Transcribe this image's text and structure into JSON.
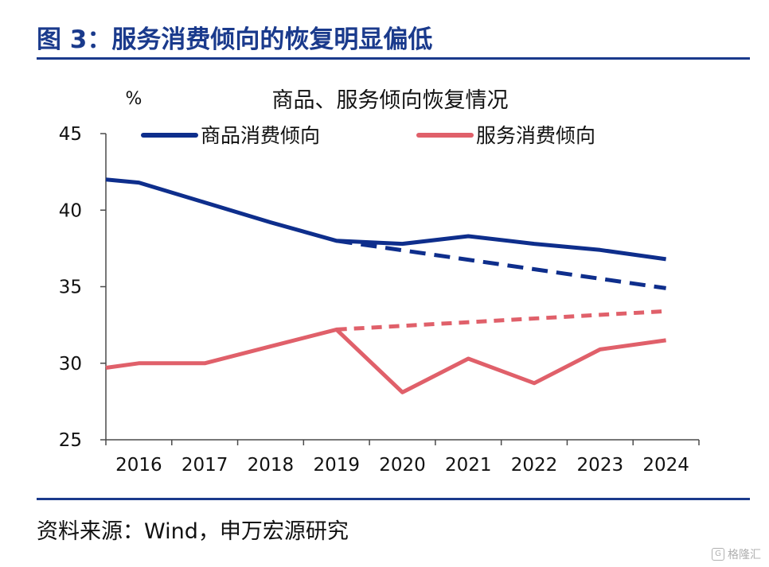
{
  "figure": {
    "title": "图 3：服务消费倾向的恢复明显偏低",
    "source": "资料来源：Wind，申万宏源研究",
    "watermark": "格隆汇"
  },
  "colors": {
    "title": "#1a3a8c",
    "goods": "#0e2e8c",
    "services": "#e0606a",
    "axis": "#4a4a4a"
  },
  "chart_data": {
    "type": "line",
    "title": "商品、服务倾向恢复情况",
    "ylabel": "%",
    "xlabel": "",
    "ylim": [
      25,
      45
    ],
    "yticks": [
      25,
      30,
      35,
      40,
      45
    ],
    "categories": [
      "2016",
      "2017",
      "2018",
      "2019",
      "2020",
      "2021",
      "2022",
      "2023",
      "2024"
    ],
    "x_range": [
      2015.5,
      2024.5
    ],
    "legend_position": "top",
    "series": [
      {
        "name": "商品消费倾向",
        "color": "#0e2e8c",
        "style": "solid",
        "x": [
          2015.5,
          2016.0,
          2017.0,
          2018.0,
          2019.0,
          2020.0,
          2021.0,
          2022.0,
          2023.0,
          2024.0
        ],
        "values": [
          42.0,
          41.8,
          40.5,
          39.2,
          38.0,
          37.8,
          38.3,
          37.8,
          37.4,
          36.8
        ]
      },
      {
        "name": "服务消费倾向",
        "color": "#e0606a",
        "style": "solid",
        "x": [
          2015.5,
          2016.0,
          2017.0,
          2018.0,
          2019.0,
          2020.0,
          2021.0,
          2022.0,
          2023.0,
          2024.0
        ],
        "values": [
          29.7,
          30.0,
          30.0,
          31.1,
          32.2,
          28.1,
          30.3,
          28.7,
          30.9,
          31.5
        ]
      },
      {
        "name": "商品消费倾向趋势",
        "color": "#0e2e8c",
        "style": "dashed",
        "legend": false,
        "x": [
          2019.0,
          2024.0
        ],
        "values": [
          38.0,
          34.9
        ]
      },
      {
        "name": "服务消费倾向趋势",
        "color": "#e0606a",
        "style": "dashed",
        "legend": false,
        "x": [
          2019.0,
          2024.0
        ],
        "values": [
          32.2,
          33.4
        ]
      }
    ]
  }
}
